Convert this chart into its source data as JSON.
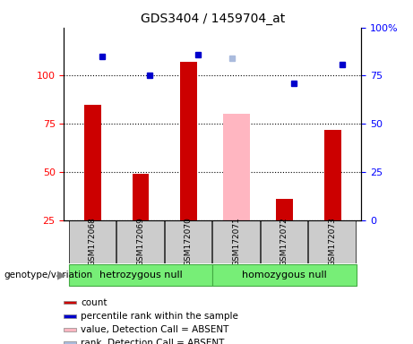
{
  "title": "GDS3404 / 1459704_at",
  "samples": [
    "GSM172068",
    "GSM172069",
    "GSM172070",
    "GSM172071",
    "GSM172072",
    "GSM172073"
  ],
  "count_values": [
    85,
    49,
    107,
    null,
    36,
    72
  ],
  "percentile_rank_values": [
    85,
    75,
    86,
    null,
    71,
    81
  ],
  "absent_value_bars": [
    null,
    null,
    null,
    80,
    null,
    null
  ],
  "absent_rank_markers": [
    null,
    null,
    null,
    84,
    null,
    null
  ],
  "left_ylim": [
    25,
    125
  ],
  "left_yticks": [
    25,
    50,
    75,
    100
  ],
  "left_yticklabels": [
    "25",
    "50",
    "75",
    "100"
  ],
  "right_ylim": [
    0,
    100
  ],
  "right_yticks": [
    0,
    25,
    50,
    75,
    100
  ],
  "right_yticklabels": [
    "0",
    "25",
    "50",
    "75",
    "100%"
  ],
  "bar_width": 0.35,
  "count_color": "#cc0000",
  "percentile_color": "#0000cc",
  "absent_bar_color": "#ffb6c1",
  "absent_rank_color": "#aabbdd",
  "bg_label_color": "#cccccc",
  "group1_name": "hetrozygous null",
  "group2_name": "homozygous null",
  "group_color": "#77ee77",
  "legend_items": [
    {
      "color": "#cc0000",
      "label": "count"
    },
    {
      "color": "#0000cc",
      "label": "percentile rank within the sample"
    },
    {
      "color": "#ffb6c1",
      "label": "value, Detection Call = ABSENT"
    },
    {
      "color": "#aabbdd",
      "label": "rank, Detection Call = ABSENT"
    }
  ]
}
